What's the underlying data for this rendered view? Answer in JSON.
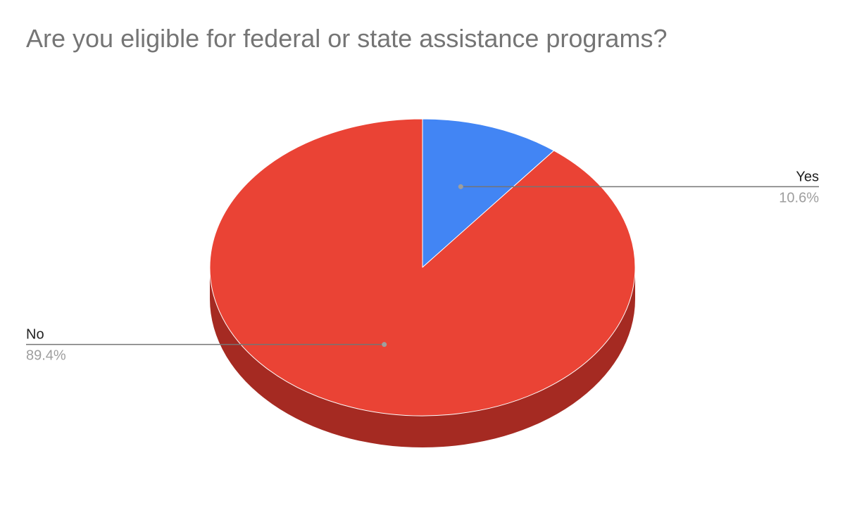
{
  "chart_data": {
    "type": "pie",
    "title": "Are you eligible for federal or state assistance programs?",
    "labels": [
      "Yes",
      "No"
    ],
    "values": [
      10.6,
      89.4
    ],
    "value_labels": [
      "10.6%",
      "89.4%"
    ],
    "colors": [
      "#4285f4",
      "#ea4335"
    ],
    "side_colors": [
      "#2a63c4",
      "#a52a22"
    ],
    "style": "3d",
    "legend": "none"
  }
}
